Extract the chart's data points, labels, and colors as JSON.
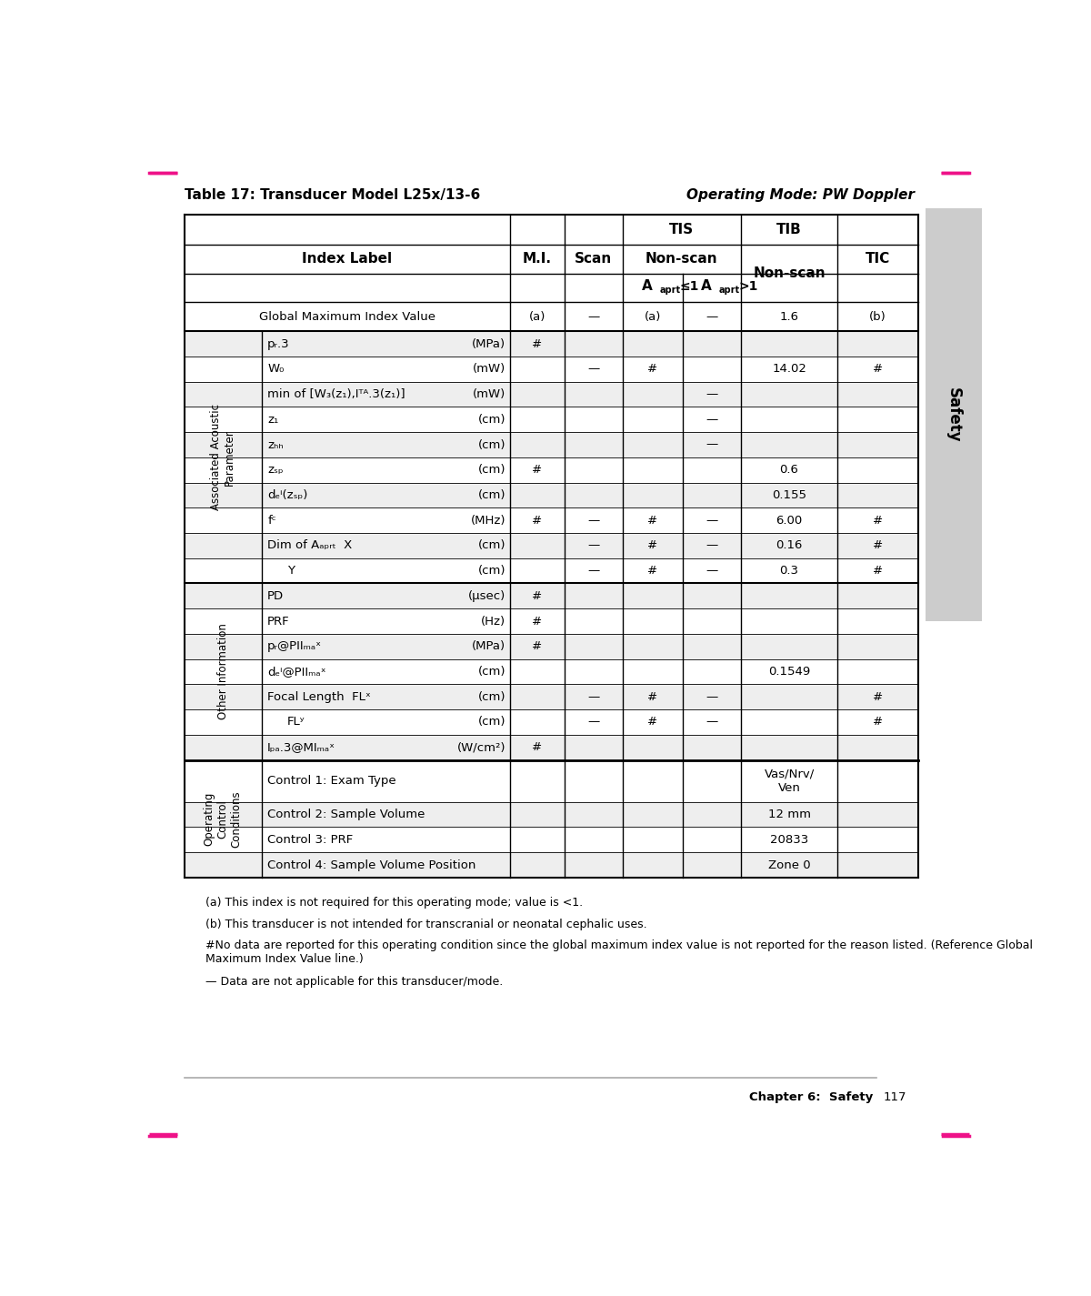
{
  "page_title_left": "Table 17: Transducer Model L25x/13-6",
  "page_title_right": "Operating Mode: PW Doppler",
  "chapter_footer": "Chapter 6:  Safety",
  "page_number": "117",
  "footnote_a": "(a) This index is not required for this operating mode; value is <1.",
  "footnote_b": "(b) This transducer is not intended for transcranial or neonatal cephalic uses.",
  "footnote_hash": "#No data are reported for this operating condition since the global maximum index value is not reported for the reason listed. (Reference Global Maximum Index Value line.)",
  "footnote_dash": "— Data are not applicable for this transducer/mode.",
  "background_color": "#ffffff",
  "cell_bg_light": "#eeeeee",
  "cell_bg_white": "#ffffff",
  "pink_color": "#ee1188",
  "sidebar_color": "#cccccc",
  "border_dark": "#000000",
  "border_thin": "#555555"
}
